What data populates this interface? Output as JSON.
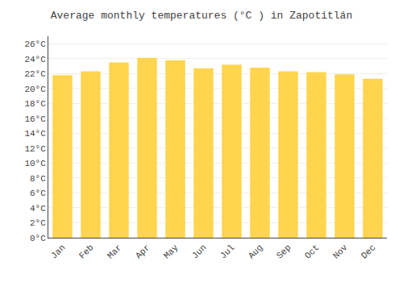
{
  "chart_data": {
    "type": "bar",
    "title": "Average monthly temperatures (°C ) in Zapotitlán",
    "categories": [
      "Jan",
      "Feb",
      "Mar",
      "Apr",
      "May",
      "Jun",
      "Jul",
      "Aug",
      "Sep",
      "Oct",
      "Nov",
      "Dec"
    ],
    "values": [
      21.8,
      22.3,
      23.5,
      24.1,
      23.8,
      22.7,
      23.2,
      22.8,
      22.3,
      22.2,
      21.9,
      21.3
    ],
    "color": "#FFD54F",
    "ylim": [
      0,
      27
    ],
    "yticks": [
      {
        "value": 0,
        "label": "0°C"
      },
      {
        "value": 2,
        "label": "2°C"
      },
      {
        "value": 4,
        "label": "4°C"
      },
      {
        "value": 6,
        "label": "6°C"
      },
      {
        "value": 8,
        "label": "8°C"
      },
      {
        "value": 10,
        "label": "10°C"
      },
      {
        "value": 12,
        "label": "12°C"
      },
      {
        "value": 14,
        "label": "14°C"
      },
      {
        "value": 16,
        "label": "16°C"
      },
      {
        "value": 18,
        "label": "18°C"
      },
      {
        "value": 20,
        "label": "20°C"
      },
      {
        "value": 22,
        "label": "22°C"
      },
      {
        "value": 24,
        "label": "24°C"
      },
      {
        "value": 26,
        "label": "26°C"
      }
    ],
    "grid": true
  }
}
